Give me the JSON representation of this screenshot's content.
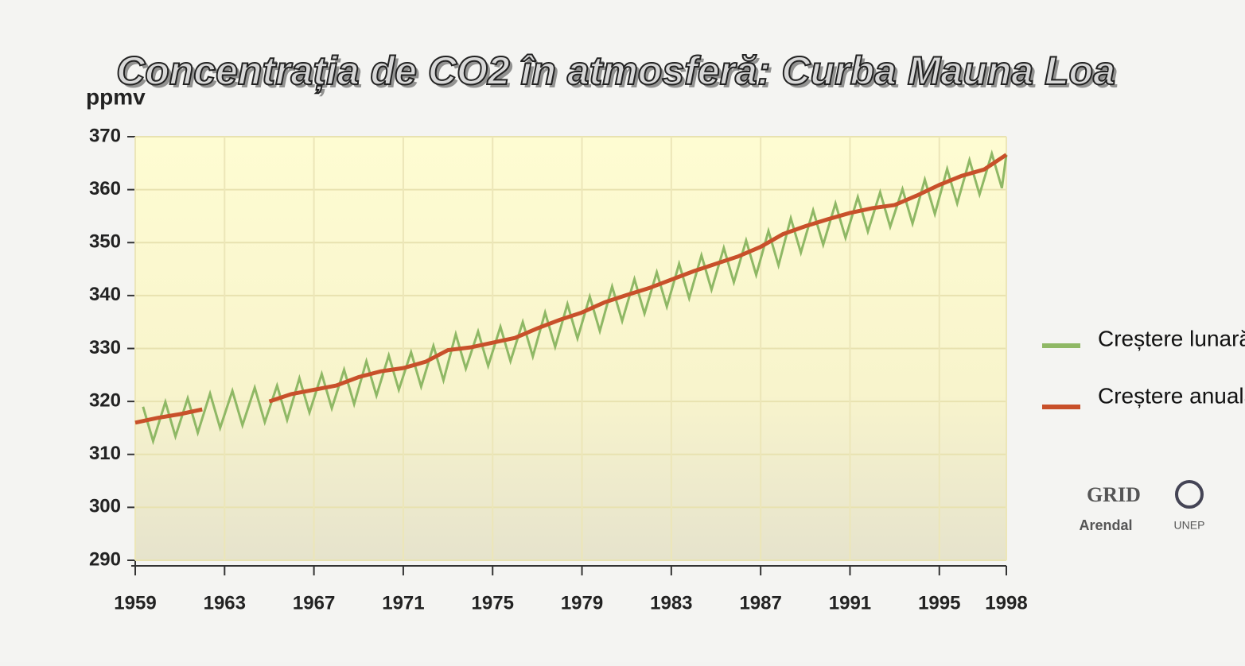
{
  "chart_data": {
    "type": "line",
    "title": "Concentrația de CO2 în atmosferă: Curba Mauna Loa",
    "y_label": "ppmv",
    "xlim": [
      1959,
      1998
    ],
    "xticks": [
      1959,
      1963,
      1967,
      1971,
      1975,
      1979,
      1983,
      1987,
      1991,
      1995,
      1998
    ],
    "ylim": [
      290,
      370
    ],
    "yticks": [
      290,
      300,
      310,
      320,
      330,
      340,
      350,
      360,
      370
    ],
    "grid": true,
    "legend": "right",
    "series": [
      {
        "name": "Creștere lunară",
        "color": "#8fb865",
        "x": [
          1959.35,
          1959.8,
          1960.35,
          1960.8,
          1961.35,
          1961.8,
          1962.35,
          1962.8,
          1963.35,
          1963.8,
          1964.35,
          1964.8,
          1965.35,
          1965.8,
          1966.35,
          1966.8,
          1967.35,
          1967.8,
          1968.35,
          1968.8,
          1969.35,
          1969.8,
          1970.35,
          1970.8,
          1971.35,
          1971.8,
          1972.35,
          1972.8,
          1973.35,
          1973.8,
          1974.35,
          1974.8,
          1975.35,
          1975.8,
          1976.35,
          1976.8,
          1977.35,
          1977.8,
          1978.35,
          1978.8,
          1979.35,
          1979.8,
          1980.35,
          1980.8,
          1981.35,
          1981.8,
          1982.35,
          1982.8,
          1983.35,
          1983.8,
          1984.35,
          1984.8,
          1985.35,
          1985.8,
          1986.35,
          1986.8,
          1987.35,
          1987.8,
          1988.35,
          1988.8,
          1989.35,
          1989.8,
          1990.35,
          1990.8,
          1991.35,
          1991.8,
          1992.35,
          1992.8,
          1993.35,
          1993.8,
          1994.35,
          1994.8,
          1995.35,
          1995.8,
          1996.35,
          1996.8,
          1997.35,
          1997.8,
          1998
        ],
        "values": [
          319.0,
          312.5,
          319.9,
          313.4,
          320.6,
          314.1,
          321.5,
          315.0,
          322.0,
          315.5,
          322.6,
          316.1,
          323.0,
          316.5,
          324.4,
          317.9,
          325.2,
          318.7,
          326.0,
          319.5,
          327.6,
          321.1,
          328.7,
          322.2,
          329.3,
          322.8,
          330.5,
          324.0,
          332.7,
          326.2,
          333.2,
          326.7,
          334.1,
          327.6,
          335.0,
          328.5,
          336.8,
          330.3,
          338.4,
          331.9,
          339.8,
          333.3,
          341.7,
          335.2,
          343.1,
          336.6,
          344.4,
          337.9,
          346.0,
          339.5,
          347.6,
          341.1,
          349.0,
          342.5,
          350.4,
          343.9,
          352.2,
          345.7,
          354.6,
          348.1,
          356.1,
          349.6,
          357.4,
          350.9,
          358.6,
          352.1,
          359.5,
          353.0,
          360.1,
          353.6,
          361.9,
          355.4,
          363.9,
          357.4,
          365.6,
          359.1,
          366.8,
          360.3,
          366.6
        ]
      },
      {
        "name": "Creștere anuală",
        "color": "#c8502a",
        "x": [
          1959,
          1960,
          1961,
          1962,
          1963,
          1964,
          1965,
          1966,
          1967,
          1968,
          1969,
          1970,
          1971,
          1972,
          1973,
          1974,
          1975,
          1976,
          1977,
          1978,
          1979,
          1980,
          1981,
          1982,
          1983,
          1984,
          1985,
          1986,
          1987,
          1988,
          1989,
          1990,
          1991,
          1992,
          1993,
          1994,
          1995,
          1996,
          1997,
          1998
        ],
        "values": [
          316.0,
          316.9,
          317.6,
          318.5,
          null,
          null,
          320.0,
          321.4,
          322.2,
          323.0,
          324.6,
          325.7,
          326.3,
          327.5,
          329.7,
          330.2,
          331.1,
          332.0,
          333.8,
          335.4,
          336.8,
          338.7,
          340.1,
          341.4,
          343.0,
          344.6,
          346.0,
          347.4,
          349.2,
          351.6,
          353.1,
          354.4,
          355.6,
          356.5,
          357.1,
          358.9,
          360.9,
          362.6,
          363.8,
          366.6
        ]
      }
    ],
    "logo": {
      "name": "GRID",
      "sub": "Arendal",
      "org": "UNEP"
    }
  }
}
